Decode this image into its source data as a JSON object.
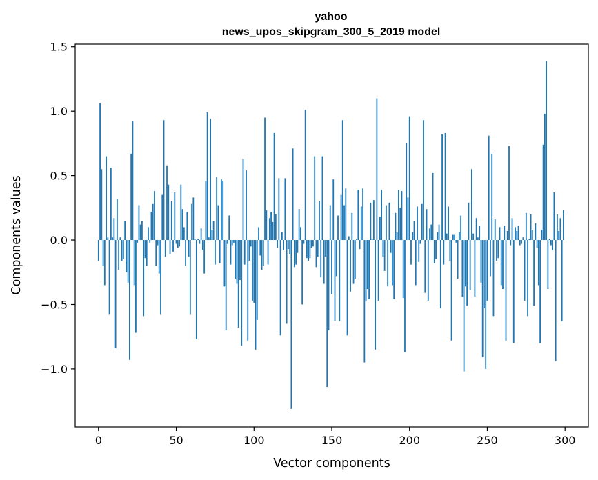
{
  "chart_data": {
    "type": "bar",
    "title": "yahoo",
    "subtitle": "news_upos_skipgram_300_5_2019 model",
    "xlabel": "Vector components",
    "ylabel": "Components values",
    "xlim": [
      -15,
      315
    ],
    "ylim": [
      -1.45,
      1.52
    ],
    "xticks": [
      0,
      50,
      100,
      150,
      200,
      250,
      300
    ],
    "xtick_labels": [
      "0",
      "50",
      "100",
      "150",
      "200",
      "250",
      "300"
    ],
    "yticks": [
      -1.0,
      -0.5,
      0.0,
      0.5,
      1.0,
      1.5
    ],
    "ytick_labels": [
      "−1.0",
      "−0.5",
      "0.0",
      "0.5",
      "1.0",
      "1.5"
    ],
    "grid": false,
    "bar_color": "#1f77b4",
    "x_start": 0,
    "values": [
      -0.16,
      1.06,
      0.55,
      -0.2,
      -0.35,
      0.65,
      0.02,
      -0.58,
      0.56,
      0.02,
      0.17,
      -0.84,
      0.32,
      -0.23,
      0.02,
      -0.16,
      -0.15,
      0.15,
      -0.25,
      -0.33,
      -0.93,
      0.67,
      0.92,
      -0.35,
      -0.72,
      -0.02,
      0.27,
      0.12,
      0.15,
      -0.59,
      -0.14,
      -0.2,
      0.1,
      -0.02,
      0.22,
      0.28,
      0.38,
      -0.2,
      -0.04,
      -0.26,
      -0.58,
      0.35,
      0.93,
      -0.13,
      0.58,
      0.43,
      -0.11,
      0.3,
      -0.09,
      0.37,
      -0.03,
      -0.06,
      -0.05,
      0.43,
      0.24,
      0.1,
      -0.2,
      0.22,
      -0.13,
      -0.58,
      0.28,
      0.33,
      0.01,
      -0.77,
      0.01,
      -0.03,
      0.09,
      -0.08,
      -0.26,
      0.46,
      0.99,
      0.02,
      0.94,
      0.08,
      0.15,
      -0.19,
      0.49,
      0.27,
      -0.18,
      0.47,
      0.46,
      -0.36,
      -0.7,
      -0.03,
      0.19,
      -0.19,
      -0.04,
      -0.02,
      -0.3,
      -0.34,
      -0.68,
      -0.31,
      -0.82,
      0.63,
      -0.19,
      0.54,
      -0.78,
      -0.16,
      -0.05,
      -0.47,
      -0.49,
      -0.85,
      -0.62,
      0.1,
      -0.12,
      -0.23,
      -0.2,
      0.95,
      0.23,
      -0.19,
      0.17,
      0.22,
      0.14,
      0.83,
      0.2,
      -0.06,
      0.48,
      -0.74,
      0.06,
      -0.08,
      0.48,
      -0.65,
      -0.07,
      -0.11,
      -1.31,
      0.71,
      -0.21,
      -0.19,
      -0.1,
      0.24,
      0.1,
      -0.5,
      -0.03,
      1.01,
      -0.14,
      -0.16,
      -0.14,
      -0.06,
      -0.05,
      0.65,
      -0.21,
      -0.13,
      0.3,
      -0.29,
      0.65,
      -0.34,
      -0.13,
      -1.14,
      -0.7,
      0.27,
      -0.42,
      0.47,
      -0.63,
      -0.28,
      0.19,
      -0.63,
      0.35,
      0.93,
      0.27,
      0.4,
      -0.74,
      0.03,
      -0.4,
      0.21,
      -0.34,
      -0.3,
      0.01,
      0.39,
      -0.07,
      0.26,
      0.4,
      -0.95,
      -0.47,
      -0.38,
      -0.46,
      0.29,
      0.01,
      0.31,
      -0.85,
      1.1,
      -0.47,
      0.18,
      0.39,
      -0.13,
      -0.24,
      0.27,
      -0.36,
      0.29,
      -0.1,
      -0.35,
      -0.46,
      0.21,
      0.06,
      0.39,
      0.25,
      0.38,
      -0.45,
      -0.87,
      0.75,
      0.33,
      0.96,
      -0.19,
      0.06,
      0.15,
      -0.35,
      0.26,
      -0.17,
      -0.03,
      0.28,
      0.93,
      -0.41,
      0.24,
      -0.47,
      0.09,
      0.12,
      0.52,
      -0.18,
      -0.15,
      0.06,
      0.12,
      -0.53,
      0.82,
      -0.19,
      0.83,
      0.05,
      0.26,
      -0.16,
      -0.78,
      0.04,
      0.04,
      -0.02,
      -0.3,
      0.06,
      0.19,
      -0.44,
      -1.02,
      -0.36,
      -0.51,
      0.29,
      -0.39,
      0.55,
      0.05,
      -0.44,
      0.17,
      0.02,
      0.11,
      -0.33,
      -0.91,
      -0.53,
      -1.0,
      -0.47,
      0.81,
      -0.28,
      0.67,
      -0.59,
      0.16,
      -0.16,
      -0.14,
      0.1,
      -0.35,
      -0.38,
      0.11,
      -0.78,
      0.07,
      0.73,
      -0.04,
      0.17,
      -0.8,
      0.1,
      0.07,
      0.11,
      -0.04,
      -0.03,
      0.02,
      -0.47,
      0.21,
      -0.59,
      0.01,
      0.2,
      0.08,
      -0.51,
      0.13,
      -0.06,
      -0.35,
      -0.8,
      0.08,
      0.74,
      0.98,
      1.39,
      -0.38,
      0.01,
      -0.04,
      -0.08,
      0.37,
      -0.94,
      0.2,
      0.07,
      0.17,
      -0.63,
      0.23
    ]
  }
}
